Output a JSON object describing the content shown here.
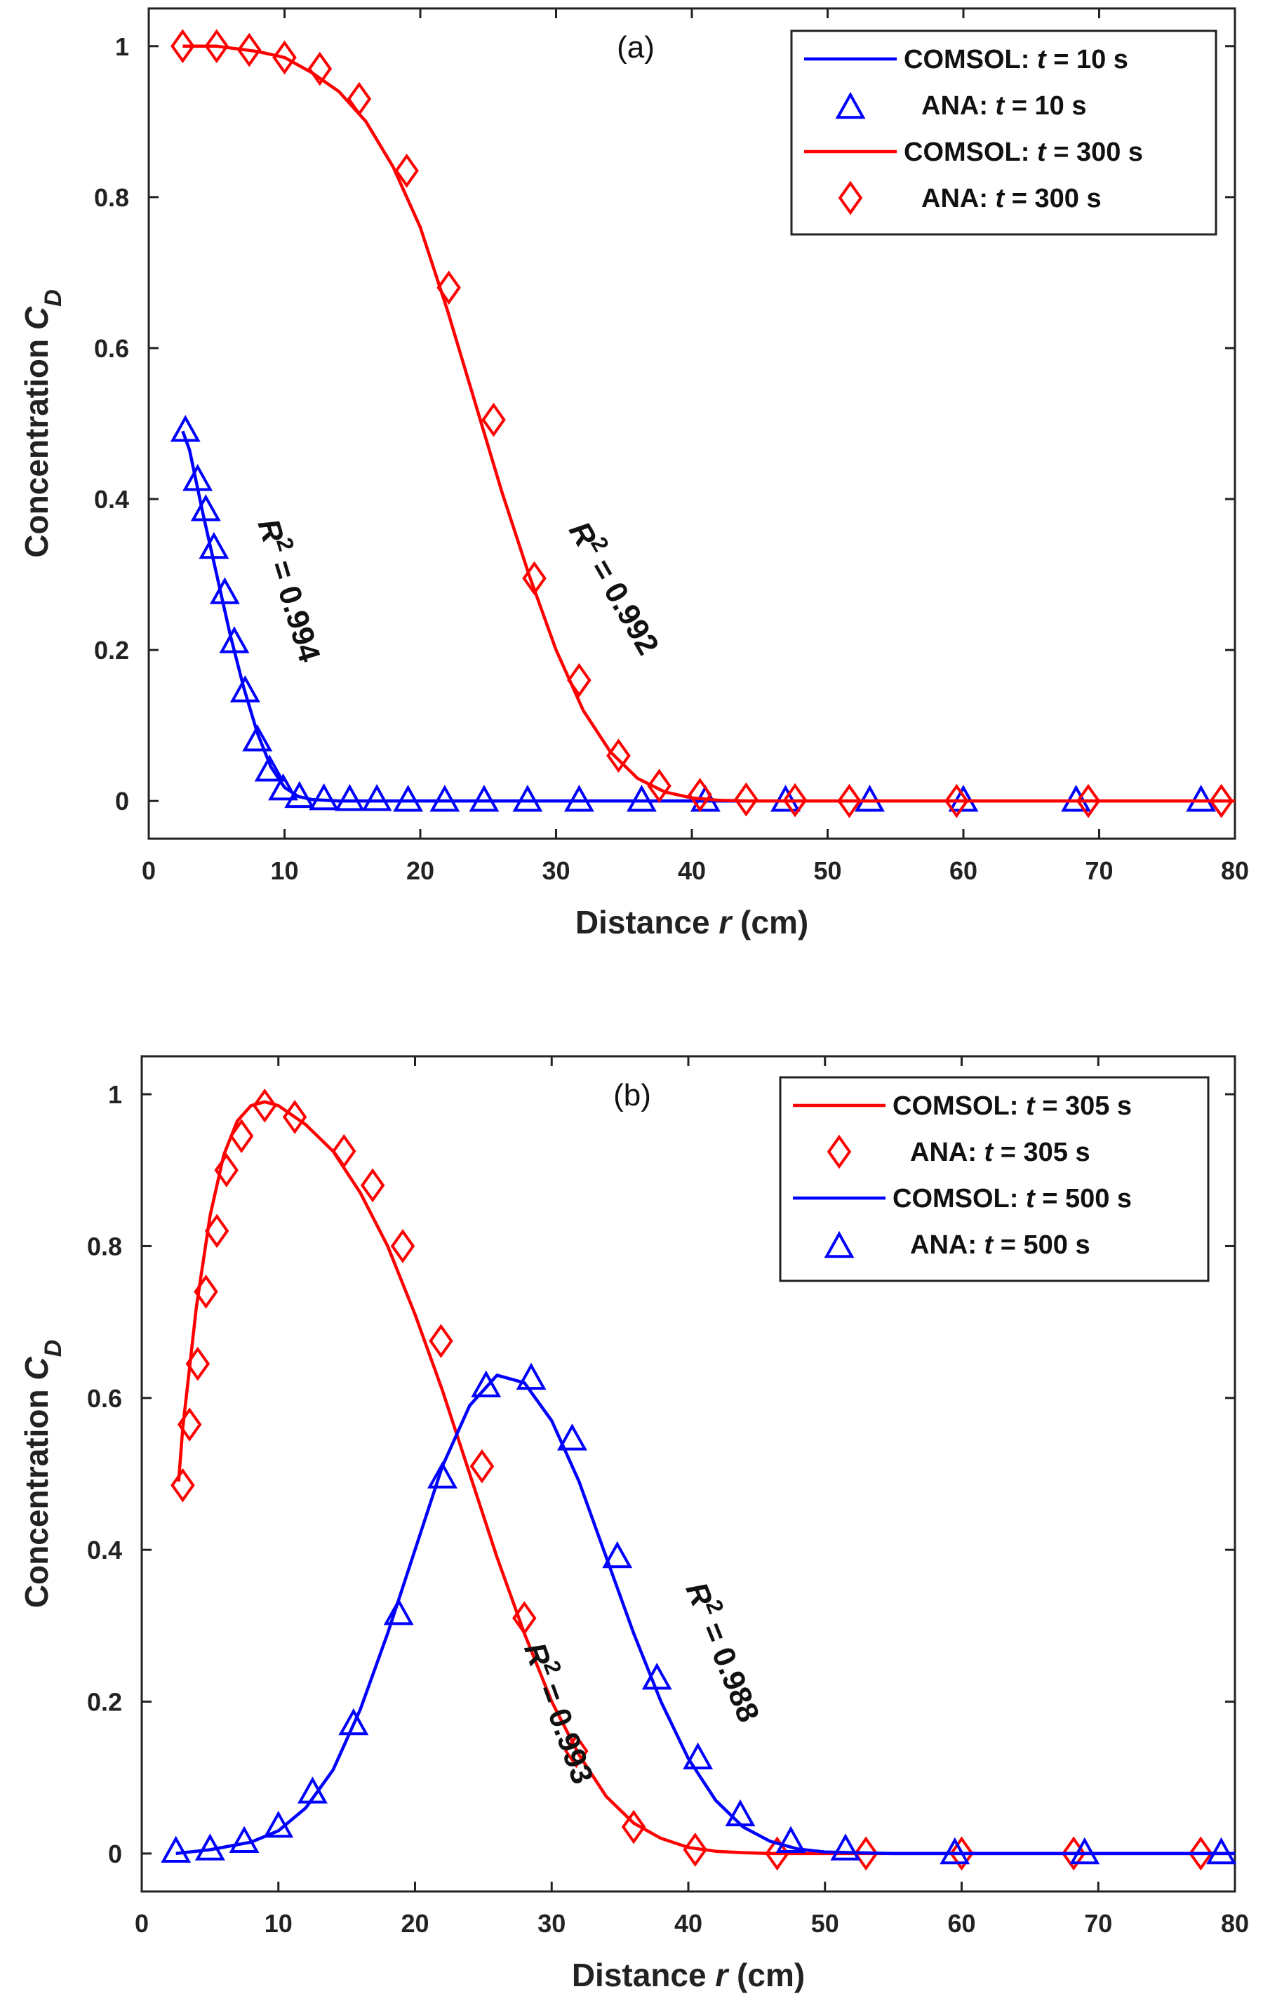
{
  "chart_data": [
    {
      "type": "line",
      "panel_label": "(a)",
      "xlabel_prefix": "Distance ",
      "xlabel_var": "r",
      "xlabel_suffix": " (cm)",
      "ylabel_prefix": "Concentration ",
      "ylabel_var": "C",
      "ylabel_sub": "D",
      "xlim": [
        0,
        80
      ],
      "ylim": [
        -0.05,
        1.05
      ],
      "xticks": [
        "0",
        "10",
        "20",
        "30",
        "40",
        "50",
        "60",
        "70",
        "80"
      ],
      "yticks": [
        "0",
        "0.2",
        "0.4",
        "0.6",
        "0.8",
        "1"
      ],
      "legend_position": "top-right",
      "legend": [
        {
          "kind": "line",
          "color": "#0000ff",
          "prefix": "COMSOL: ",
          "var": "t",
          "suffix": " = 10 s"
        },
        {
          "kind": "triangle",
          "color": "#0000ff",
          "prefix": "ANA: ",
          "var": "t",
          "suffix": " = 10 s"
        },
        {
          "kind": "line",
          "color": "#ff0000",
          "prefix": "COMSOL: ",
          "var": "t",
          "suffix": " = 300 s"
        },
        {
          "kind": "diamond",
          "color": "#ff0000",
          "prefix": "ANA: ",
          "var": "t",
          "suffix": " = 300 s"
        }
      ],
      "annotations": [
        {
          "base": "R",
          "sup": "2",
          "value": " = 0.994",
          "x": 9.6,
          "y": 0.275,
          "rotate": 73
        },
        {
          "base": "R",
          "sup": "2",
          "value": " = 0.992",
          "x": 33.6,
          "y": 0.275,
          "rotate": 60
        }
      ],
      "series": [
        {
          "kind": "line",
          "color": "#0000ff",
          "x": [
            2.5,
            3,
            4,
            5,
            6,
            7,
            8,
            9,
            10,
            11,
            12,
            14,
            20,
            30,
            40,
            50,
            60,
            70,
            80
          ],
          "y": [
            0.49,
            0.465,
            0.38,
            0.3,
            0.22,
            0.15,
            0.09,
            0.045,
            0.018,
            0.006,
            0.002,
            0,
            0,
            0,
            0,
            0,
            0,
            0,
            0
          ]
        },
        {
          "kind": "triangle",
          "color": "#0000ff",
          "x": [
            2.7,
            3.6,
            4.2,
            4.8,
            5.6,
            6.3,
            7.1,
            8.0,
            8.9,
            9.9,
            11.1,
            12.9,
            14.8,
            16.8,
            19.1,
            21.8,
            24.7,
            27.9,
            31.7,
            36.3,
            41.0,
            46.9,
            53.1,
            60.0,
            68.3,
            77.5
          ],
          "y": [
            0.49,
            0.425,
            0.385,
            0.335,
            0.275,
            0.21,
            0.145,
            0.08,
            0.04,
            0.015,
            0.005,
            0.002,
            0.001,
            0.001,
            0,
            0,
            0,
            0,
            0,
            0,
            0,
            0,
            0,
            0,
            0,
            0
          ]
        },
        {
          "kind": "line",
          "color": "#ff0000",
          "x": [
            2.5,
            5,
            8,
            10,
            12,
            14,
            16,
            18,
            20,
            22,
            24,
            26,
            28,
            30,
            32,
            34,
            36,
            38,
            40,
            42,
            44,
            48,
            52,
            60,
            70,
            80
          ],
          "y": [
            1.0,
            1.0,
            0.993,
            0.985,
            0.965,
            0.94,
            0.9,
            0.84,
            0.76,
            0.65,
            0.53,
            0.41,
            0.3,
            0.2,
            0.12,
            0.065,
            0.03,
            0.012,
            0.004,
            0.001,
            0,
            0,
            0,
            0,
            0,
            0
          ]
        },
        {
          "kind": "diamond",
          "color": "#ff0000",
          "x": [
            2.5,
            5.0,
            7.4,
            10.0,
            12.6,
            15.5,
            19.0,
            22.1,
            25.4,
            28.4,
            31.7,
            34.6,
            37.6,
            40.6,
            44.0,
            47.6,
            51.6,
            59.5,
            69.2,
            79.0
          ],
          "y": [
            1.0,
            1.0,
            0.995,
            0.985,
            0.97,
            0.93,
            0.835,
            0.68,
            0.505,
            0.295,
            0.16,
            0.06,
            0.02,
            0.008,
            0.002,
            0.001,
            0,
            0,
            0,
            0
          ]
        }
      ]
    },
    {
      "type": "line",
      "panel_label": "(b)",
      "xlabel_prefix": "Distance ",
      "xlabel_var": "r",
      "xlabel_suffix": " (cm)",
      "ylabel_prefix": "Concentration ",
      "ylabel_var": "C",
      "ylabel_sub": "D",
      "xlim": [
        0,
        80
      ],
      "ylim": [
        -0.05,
        1.05
      ],
      "xticks": [
        "0",
        "10",
        "20",
        "30",
        "40",
        "50",
        "60",
        "70",
        "80"
      ],
      "yticks": [
        "0",
        "0.2",
        "0.4",
        "0.6",
        "0.8",
        "1"
      ],
      "legend_position": "top-right",
      "legend": [
        {
          "kind": "line",
          "color": "#ff0000",
          "prefix": "COMSOL: ",
          "var": "t",
          "suffix": " = 305 s"
        },
        {
          "kind": "diamond",
          "color": "#ff0000",
          "prefix": "ANA: ",
          "var": "t",
          "suffix": " = 305 s"
        },
        {
          "kind": "line",
          "color": "#0000ff",
          "prefix": "COMSOL: ",
          "var": "t",
          "suffix": " = 500 s"
        },
        {
          "kind": "triangle",
          "color": "#0000ff",
          "prefix": "ANA: ",
          "var": "t",
          "suffix": " = 500 s"
        }
      ],
      "annotations": [
        {
          "base": "R",
          "sup": "2",
          "value": " = 0.993",
          "x": 29.8,
          "y": 0.18,
          "rotate": 70
        },
        {
          "base": "R",
          "sup": "2",
          "value": " = 0.988",
          "x": 41.8,
          "y": 0.26,
          "rotate": 68
        }
      ],
      "series": [
        {
          "kind": "line",
          "color": "#ff0000",
          "x": [
            2.7,
            3,
            3.5,
            4,
            5,
            6,
            7,
            8,
            9,
            10,
            12,
            14,
            16,
            18,
            20,
            22,
            24,
            26,
            28,
            30,
            32,
            34,
            36,
            38,
            40,
            42,
            44,
            46,
            50,
            60,
            70,
            80
          ],
          "y": [
            0.49,
            0.56,
            0.64,
            0.72,
            0.84,
            0.92,
            0.965,
            0.985,
            0.99,
            0.985,
            0.96,
            0.925,
            0.87,
            0.8,
            0.71,
            0.61,
            0.5,
            0.39,
            0.29,
            0.2,
            0.13,
            0.075,
            0.04,
            0.02,
            0.008,
            0.003,
            0.001,
            0,
            0,
            0,
            0,
            0
          ]
        },
        {
          "kind": "diamond",
          "color": "#ff0000",
          "x": [
            3.0,
            3.5,
            4.1,
            4.7,
            5.5,
            6.2,
            7.3,
            9.0,
            11.2,
            14.8,
            16.9,
            19.1,
            21.9,
            24.9,
            28.0,
            31.8,
            36.0,
            40.5,
            46.5,
            53.0,
            60.0,
            68.2,
            77.5
          ],
          "y": [
            0.485,
            0.565,
            0.645,
            0.74,
            0.82,
            0.9,
            0.945,
            0.985,
            0.97,
            0.925,
            0.88,
            0.8,
            0.675,
            0.51,
            0.31,
            0.135,
            0.035,
            0.005,
            0,
            0,
            0,
            0,
            0
          ]
        },
        {
          "kind": "line",
          "color": "#0000ff",
          "x": [
            2.5,
            5,
            8,
            10,
            12,
            14,
            16,
            18,
            20,
            22,
            24,
            26,
            28,
            30,
            32,
            34,
            36,
            38,
            40,
            42,
            44,
            46,
            48,
            50,
            55,
            60,
            70,
            80
          ],
          "y": [
            0,
            0.005,
            0.015,
            0.03,
            0.06,
            0.11,
            0.19,
            0.29,
            0.4,
            0.51,
            0.59,
            0.63,
            0.62,
            0.57,
            0.49,
            0.39,
            0.29,
            0.2,
            0.125,
            0.07,
            0.035,
            0.016,
            0.006,
            0.002,
            0,
            0,
            0,
            0
          ]
        },
        {
          "kind": "triangle",
          "color": "#0000ff",
          "x": [
            2.5,
            5.0,
            7.5,
            10.0,
            12.5,
            15.5,
            18.8,
            22.0,
            25.2,
            28.5,
            31.5,
            34.8,
            37.7,
            40.7,
            43.8,
            47.5,
            51.5,
            59.5,
            69.0,
            79.0
          ],
          "y": [
            0.002,
            0.005,
            0.015,
            0.035,
            0.08,
            0.17,
            0.315,
            0.495,
            0.615,
            0.625,
            0.545,
            0.39,
            0.23,
            0.125,
            0.05,
            0.015,
            0.005,
            0,
            0,
            0
          ]
        }
      ]
    }
  ]
}
